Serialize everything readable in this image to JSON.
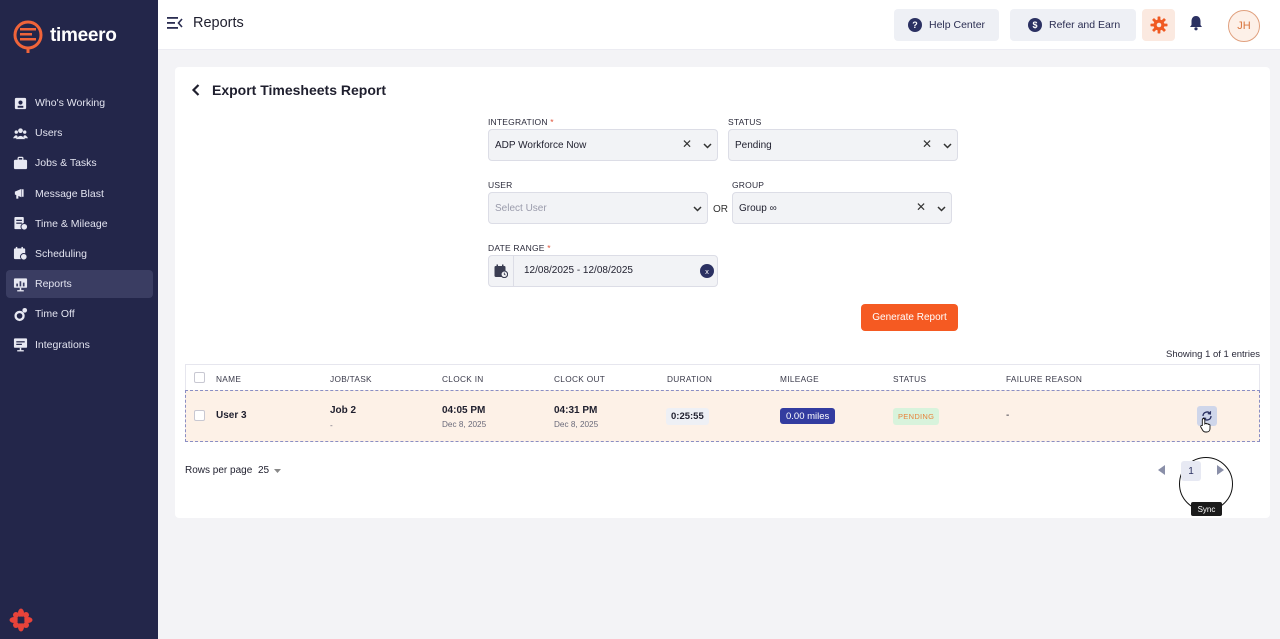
{
  "brand": {
    "name": "timeero"
  },
  "sidebar": {
    "items": [
      {
        "label": "Who's Working",
        "icon": "user-clock-icon"
      },
      {
        "label": "Users",
        "icon": "users-icon"
      },
      {
        "label": "Jobs & Tasks",
        "icon": "briefcase-icon"
      },
      {
        "label": "Message Blast",
        "icon": "megaphone-icon"
      },
      {
        "label": "Time & Mileage",
        "icon": "timesheet-icon"
      },
      {
        "label": "Scheduling",
        "icon": "calendar-clock-icon"
      },
      {
        "label": "Reports",
        "icon": "reports-icon",
        "active": true
      },
      {
        "label": "Time Off",
        "icon": "time-off-icon"
      },
      {
        "label": "Integrations",
        "icon": "integrations-icon"
      }
    ]
  },
  "header": {
    "title": "Reports",
    "help_label": "Help Center",
    "help_icon": "?",
    "refer_label": "Refer and Earn",
    "refer_icon": "$",
    "avatar_initials": "JH"
  },
  "report": {
    "title": "Export Timesheets Report",
    "integration": {
      "label": "INTEGRATION",
      "required": "*",
      "value": "ADP Workforce Now"
    },
    "status": {
      "label": "STATUS",
      "value": "Pending"
    },
    "user": {
      "label": "USER",
      "placeholder": "Select User"
    },
    "or_label": "OR",
    "group": {
      "label": "GROUP",
      "value": "Group ∞"
    },
    "date_range": {
      "label": "DATE RANGE",
      "required": "*",
      "value": "12/08/2025 - 12/08/2025",
      "clear": "x"
    },
    "generate_label": "Generate Report",
    "showing": "Showing 1 of 1 entries"
  },
  "table": {
    "columns": [
      "NAME",
      "JOB/TASK",
      "CLOCK IN",
      "CLOCK OUT",
      "DURATION",
      "MILEAGE",
      "STATUS",
      "FAILURE REASON"
    ],
    "rows": [
      {
        "name": "User 3",
        "job": "Job 2",
        "task": "-",
        "clock_in_time": "04:05 PM",
        "clock_in_date": "Dec 8, 2025",
        "clock_out_time": "04:31 PM",
        "clock_out_date": "Dec 8, 2025",
        "duration": "0:25:55",
        "mileage": "0.00 miles",
        "status": "PENDING",
        "failure_reason": "-",
        "action_tooltip": "Sync"
      }
    ]
  },
  "pagination": {
    "rows_per_page_label": "Rows per page",
    "rows_per_page": "25",
    "current_page": "1"
  },
  "colors": {
    "sidebar": "#23264a",
    "accent": "#f55a22",
    "primary": "#2b3162",
    "mileage_badge": "#333ca0",
    "row_highlight": "#fdf1e7"
  }
}
